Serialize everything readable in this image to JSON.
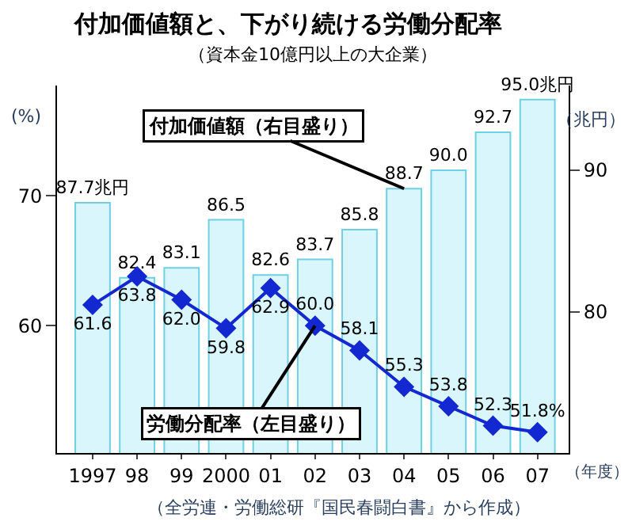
{
  "chart_data": {
    "type": "bar",
    "title": "付加価値額と、下がり続ける労働分配率",
    "subtitle": "（資本金10億円以上の大企業）",
    "xlabel": "（年度）",
    "ylabel": "(%)",
    "y2label": "（兆円）",
    "categories": [
      "1997",
      "98",
      "99",
      "2000",
      "01",
      "02",
      "03",
      "04",
      "05",
      "06",
      "07"
    ],
    "series": [
      {
        "name": "付加価値額（右目盛り）",
        "axis": "y2",
        "color": "#d8f6fb",
        "values": [
          87.7,
          82.4,
          83.1,
          86.5,
          82.6,
          83.7,
          85.8,
          88.7,
          90.0,
          92.7,
          95.0
        ],
        "value_labels": [
          "87.7兆円",
          "82.4",
          "83.1",
          "86.5",
          "82.6",
          "83.7",
          "85.8",
          "88.7",
          "90.0",
          "92.7",
          "95.0兆円"
        ]
      },
      {
        "name": "労働分配率（左目盛り）",
        "type": "line",
        "color": "#1428d2",
        "marker": "diamond",
        "values": [
          61.6,
          63.8,
          62.0,
          59.8,
          62.9,
          60.0,
          58.1,
          55.3,
          53.8,
          52.3,
          51.8
        ],
        "value_labels": [
          "61.6",
          "63.8",
          "62.0",
          "59.8",
          "62.9",
          "60.0",
          "58.1",
          "55.3",
          "53.8",
          "52.3",
          "51.8%"
        ]
      }
    ],
    "ylim": [
      50.2,
      78.5
    ],
    "yticks": [
      60,
      70
    ],
    "y2lim": [
      70,
      96
    ],
    "y2ticks": [
      80,
      90
    ],
    "annotations": [
      "（全労連・労働総研『国民春闘白書』から作成）"
    ],
    "legend": false
  }
}
